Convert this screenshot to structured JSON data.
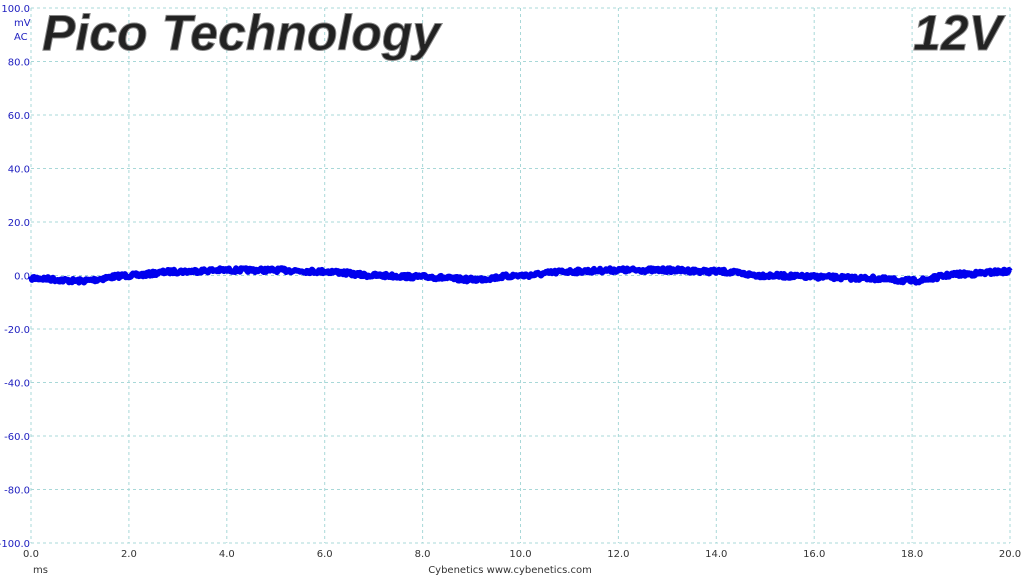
{
  "chart_data": {
    "type": "line",
    "title": "Pico Technology",
    "title_right": "12V",
    "ylabel_unit": "mV",
    "ylabel_coupling": "AC",
    "xlabel": "ms",
    "footer": "Cybenetics  www.cybenetics.com",
    "xlim": [
      0,
      20
    ],
    "ylim": [
      -100,
      100
    ],
    "x_ticks": [
      "0.0",
      "2.0",
      "4.0",
      "6.0",
      "8.0",
      "10.0",
      "12.0",
      "14.0",
      "16.0",
      "18.0",
      "20.0"
    ],
    "y_ticks": [
      "100.0",
      "80.0",
      "60.0",
      "40.0",
      "20.0",
      "0.0",
      "-20.0",
      "-40.0",
      "-60.0",
      "-80.0",
      "-100.0"
    ],
    "grid": true,
    "series": [
      {
        "color": "#0000ee",
        "x": [
          0,
          1,
          2,
          3,
          4,
          5,
          6,
          7,
          8,
          9,
          10,
          11,
          12,
          13,
          14,
          15,
          16,
          17,
          18,
          19,
          20
        ],
        "y": [
          -1,
          -2,
          0,
          1.5,
          2,
          2,
          1.5,
          0,
          -0.5,
          -1.5,
          0,
          1.5,
          2,
          2,
          1.5,
          0,
          -0.5,
          -1,
          -2,
          0.5,
          1.5
        ]
      }
    ]
  }
}
